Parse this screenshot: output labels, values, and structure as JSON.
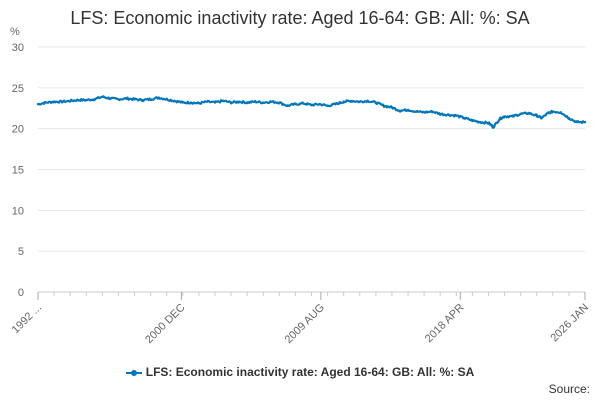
{
  "chart_data": {
    "type": "line",
    "title": "LFS: Economic inactivity rate: Aged 16-64: GB: All: %: SA",
    "ylabel": "%",
    "xlabel": "",
    "ylim": [
      0,
      30
    ],
    "yticks": [
      0,
      5,
      10,
      15,
      20,
      25,
      30
    ],
    "x_start": "1992",
    "x_end": "2026 JAN",
    "xtick_labels": [
      {
        "label": "1992 ...",
        "x": 1992.0
      },
      {
        "label": "2000 DEC",
        "x": 2000.917
      },
      {
        "label": "2009 AUG",
        "x": 2009.583
      },
      {
        "label": "2018 APR",
        "x": 2018.25
      },
      {
        "label": "2026 JAN",
        "x": 2026.0
      }
    ],
    "grid": true,
    "legend": "bottom-center",
    "line_color": "#0077bb",
    "series": [
      {
        "name": "LFS: Economic inactivity rate: Aged 16-64: GB: All: %: SA",
        "points": [
          [
            1992.0,
            23.0
          ],
          [
            1992.5,
            23.2
          ],
          [
            1993.0,
            23.3
          ],
          [
            1993.5,
            23.3
          ],
          [
            1994.0,
            23.4
          ],
          [
            1994.5,
            23.5
          ],
          [
            1995.0,
            23.5
          ],
          [
            1995.5,
            23.6
          ],
          [
            1996.0,
            23.9
          ],
          [
            1996.5,
            23.7
          ],
          [
            1997.0,
            23.6
          ],
          [
            1997.5,
            23.7
          ],
          [
            1998.0,
            23.6
          ],
          [
            1998.5,
            23.5
          ],
          [
            1999.0,
            23.6
          ],
          [
            1999.5,
            23.8
          ],
          [
            2000.0,
            23.6
          ],
          [
            2000.5,
            23.4
          ],
          [
            2001.0,
            23.2
          ],
          [
            2001.5,
            23.2
          ],
          [
            2002.0,
            23.1
          ],
          [
            2002.5,
            23.3
          ],
          [
            2003.0,
            23.2
          ],
          [
            2003.5,
            23.4
          ],
          [
            2004.0,
            23.2
          ],
          [
            2004.5,
            23.3
          ],
          [
            2005.0,
            23.2
          ],
          [
            2005.5,
            23.3
          ],
          [
            2006.0,
            23.2
          ],
          [
            2006.5,
            23.3
          ],
          [
            2007.0,
            23.2
          ],
          [
            2007.5,
            22.8
          ],
          [
            2008.0,
            23.0
          ],
          [
            2008.5,
            23.1
          ],
          [
            2009.0,
            22.9
          ],
          [
            2009.5,
            23.0
          ],
          [
            2010.0,
            22.8
          ],
          [
            2010.5,
            23.0
          ],
          [
            2011.0,
            23.3
          ],
          [
            2011.5,
            23.4
          ],
          [
            2012.0,
            23.3
          ],
          [
            2012.5,
            23.4
          ],
          [
            2013.0,
            23.2
          ],
          [
            2013.5,
            22.8
          ],
          [
            2014.0,
            22.6
          ],
          [
            2014.5,
            22.2
          ],
          [
            2015.0,
            22.3
          ],
          [
            2015.5,
            22.1
          ],
          [
            2016.0,
            22.0
          ],
          [
            2016.5,
            22.1
          ],
          [
            2017.0,
            21.8
          ],
          [
            2017.5,
            21.7
          ],
          [
            2018.0,
            21.6
          ],
          [
            2018.5,
            21.3
          ],
          [
            2019.0,
            21.0
          ],
          [
            2019.5,
            20.8
          ],
          [
            2020.0,
            20.7
          ],
          [
            2020.3,
            20.2
          ],
          [
            2020.7,
            21.2
          ],
          [
            2021.0,
            21.5
          ],
          [
            2021.5,
            21.5
          ],
          [
            2022.0,
            21.8
          ],
          [
            2022.5,
            21.9
          ],
          [
            2023.0,
            21.6
          ],
          [
            2023.3,
            21.3
          ],
          [
            2023.7,
            21.9
          ],
          [
            2024.0,
            22.1
          ],
          [
            2024.5,
            22.0
          ],
          [
            2025.0,
            21.3
          ],
          [
            2025.5,
            20.8
          ],
          [
            2026.0,
            20.8
          ]
        ]
      }
    ]
  },
  "legend": {
    "label": "LFS: Economic inactivity rate: Aged 16-64: GB: All: %: SA"
  },
  "footer": {
    "source_label": "Source:"
  }
}
